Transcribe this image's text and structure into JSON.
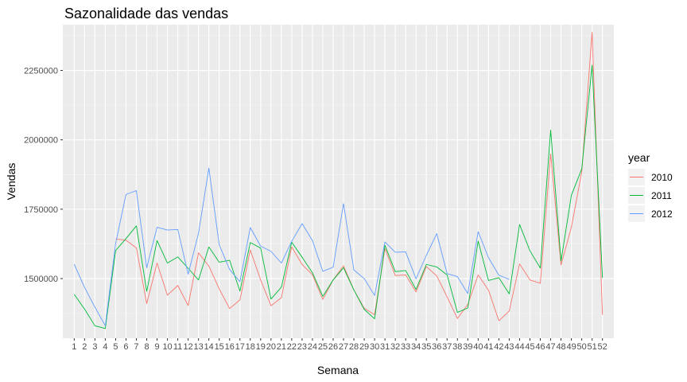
{
  "chart_data": {
    "type": "line",
    "title": "Sazonalidade das vendas",
    "xlabel": "Semana",
    "ylabel": "Vendas",
    "ylim": [
      1285000,
      2415000
    ],
    "yticks": [
      1500000,
      1750000,
      2000000,
      2250000
    ],
    "ytick_labels": [
      "1500000",
      "1750000",
      "2000000",
      "2250000"
    ],
    "x": [
      1,
      2,
      3,
      4,
      5,
      6,
      7,
      8,
      9,
      10,
      11,
      12,
      13,
      14,
      15,
      16,
      17,
      18,
      19,
      20,
      21,
      22,
      23,
      24,
      25,
      26,
      27,
      28,
      29,
      30,
      31,
      32,
      33,
      34,
      35,
      36,
      37,
      38,
      39,
      40,
      41,
      42,
      43,
      44,
      45,
      46,
      47,
      48,
      49,
      50,
      51,
      52
    ],
    "grid": true,
    "legend": {
      "title": "year",
      "position": "right"
    },
    "series": [
      {
        "name": "2010",
        "color": "#F8766D",
        "values": [
          null,
          null,
          null,
          null,
          1643000,
          1638000,
          1611000,
          1410000,
          1556000,
          1440000,
          1475000,
          1403000,
          1593000,
          1545000,
          1463000,
          1392000,
          1423000,
          1603000,
          1495000,
          1402000,
          1431000,
          1614000,
          1551000,
          1514000,
          1425000,
          1495000,
          1546000,
          1459000,
          1393000,
          1370000,
          1608000,
          1511000,
          1513000,
          1452000,
          1543000,
          1510000,
          1434000,
          1356000,
          1407000,
          1513000,
          1458000,
          1348000,
          1383000,
          1553000,
          1495000,
          1483000,
          1949000,
          1549000,
          1685000,
          1884000,
          2388000,
          1370000
        ]
      },
      {
        "name": "2011",
        "color": "#00BA38",
        "values": [
          1443000,
          1390000,
          1330000,
          1320000,
          1601000,
          1644000,
          1690000,
          1454000,
          1637000,
          1556000,
          1578000,
          1537000,
          1495000,
          1614000,
          1559000,
          1566000,
          1455000,
          1630000,
          1610000,
          1426000,
          1469000,
          1631000,
          1577000,
          1521000,
          1436000,
          1495000,
          1539000,
          1459000,
          1389000,
          1355000,
          1620000,
          1525000,
          1529000,
          1461000,
          1551000,
          1542000,
          1513000,
          1378000,
          1394000,
          1635000,
          1493000,
          1503000,
          1445000,
          1695000,
          1600000,
          1538000,
          2035000,
          1563000,
          1800000,
          1895000,
          2269000,
          1503000
        ]
      },
      {
        "name": "2012",
        "color": "#619CFF",
        "values": [
          1552000,
          1468000,
          1397000,
          1330000,
          1627000,
          1803000,
          1817000,
          1539000,
          1685000,
          1675000,
          1677000,
          1516000,
          1663000,
          1898000,
          1622000,
          1533000,
          1489000,
          1684000,
          1617000,
          1598000,
          1556000,
          1634000,
          1698000,
          1637000,
          1526000,
          1541000,
          1770000,
          1531000,
          1500000,
          1439000,
          1632000,
          1595000,
          1596000,
          1499000,
          1584000,
          1662000,
          1518000,
          1507000,
          1446000,
          1669000,
          1575000,
          1512000,
          1497000,
          null,
          null,
          null,
          null,
          null,
          null,
          null,
          null,
          null
        ]
      }
    ]
  }
}
